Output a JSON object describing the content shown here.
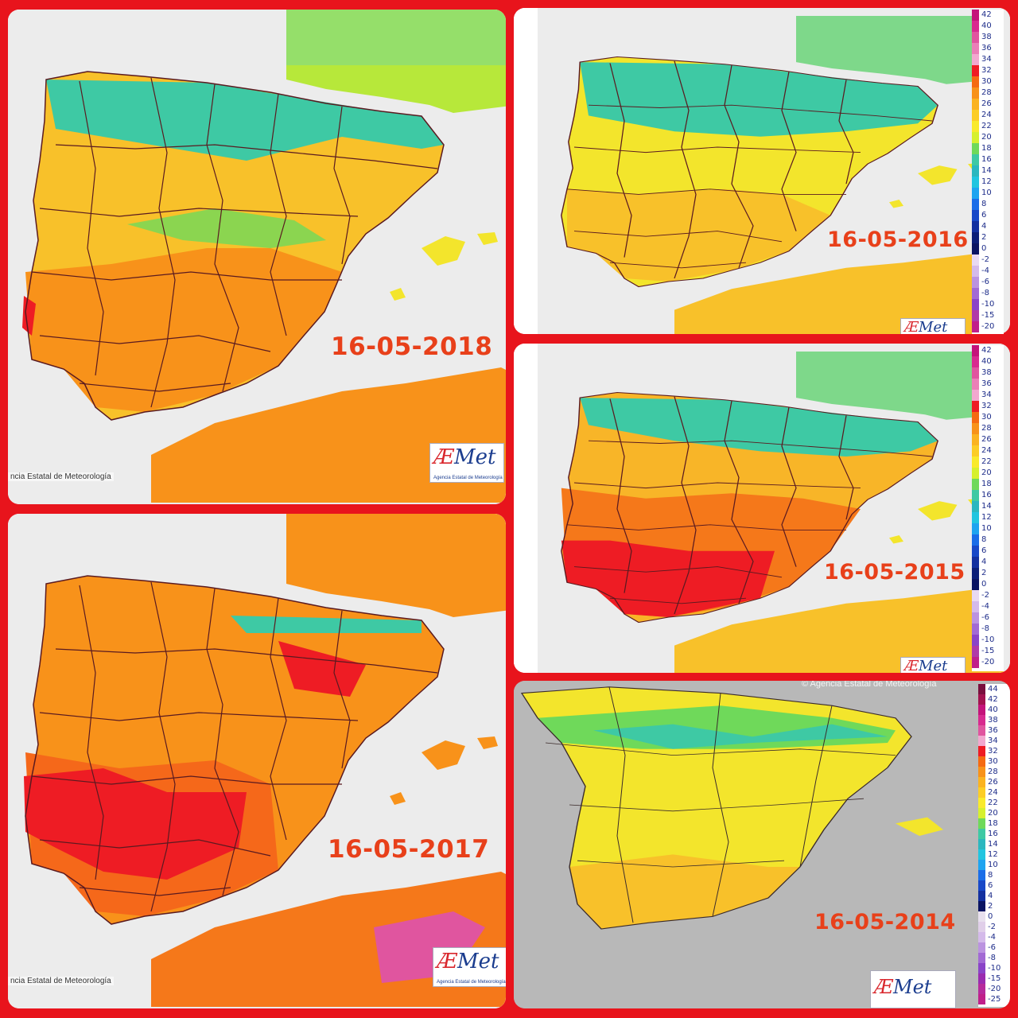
{
  "panels": [
    {
      "id": "p2018",
      "date": "16-05-2018",
      "credit": "ncia Estatal de Meteorología",
      "logo": "AEmet",
      "logo_sub": "Agencia Estatal de Meteorología"
    },
    {
      "id": "p2016",
      "date": "16-05-2016",
      "logo": "AEmet"
    },
    {
      "id": "p2015",
      "date": "16-05-2015",
      "logo": "AEmet"
    },
    {
      "id": "p2017",
      "date": "16-05-2017",
      "credit": "ncia Estatal de Meteorología",
      "logo": "AEmet",
      "logo_sub": "Agencia Estatal de Meteorología"
    },
    {
      "id": "p2014",
      "date": "16-05-2014",
      "top_credit": "© Agencia Estatal de Meteorología",
      "logo": "AEmet"
    }
  ],
  "legend_a": {
    "labels": [
      "42",
      "40",
      "38",
      "36",
      "34",
      "32",
      "30",
      "28",
      "26",
      "24",
      "22",
      "20",
      "18",
      "16",
      "14",
      "12",
      "10",
      "8",
      "6",
      "4",
      "2",
      "0",
      "-2",
      "-4",
      "-6",
      "-8",
      "-10",
      "-15",
      "-20"
    ],
    "colors": [
      "#c4137a",
      "#d82a8f",
      "#e0559f",
      "#ea7fb7",
      "#f2a8cf",
      "#ee1c24",
      "#f56a12",
      "#f8921a",
      "#fbb321",
      "#fccd26",
      "#f9ea2c",
      "#d6f02e",
      "#6fd95a",
      "#3ec9a4",
      "#2bb7bf",
      "#21c5e0",
      "#1ea4f0",
      "#1a6de8",
      "#1848c8",
      "#1330a0",
      "#0b1e78",
      "#0a1462",
      "#e8d9f2",
      "#d4baea",
      "#bb93e0",
      "#a26ad4",
      "#8a44c8",
      "#b03aa8",
      "#c0208a"
    ]
  },
  "legend_b": {
    "labels": [
      "44",
      "42",
      "40",
      "38",
      "36",
      "34",
      "32",
      "30",
      "28",
      "26",
      "24",
      "22",
      "20",
      "18",
      "16",
      "14",
      "12",
      "10",
      "8",
      "6",
      "4",
      "2",
      "0",
      "-2",
      "-4",
      "-6",
      "-8",
      "-10",
      "-15",
      "-20",
      "-25"
    ],
    "colors": [
      "#7a0f3e",
      "#a3124f",
      "#c4137a",
      "#d82a8f",
      "#e0559f",
      "#f2a8cf",
      "#ee1c24",
      "#f56a12",
      "#f8921a",
      "#fbb321",
      "#fccd26",
      "#f9ea2c",
      "#d6f02e",
      "#6fd95a",
      "#3ec9a4",
      "#2bb7bf",
      "#21c5e0",
      "#1ea4f0",
      "#1a6de8",
      "#1848c8",
      "#1330a0",
      "#0a1462",
      "#e8e0ee",
      "#e0cfe9",
      "#d4baea",
      "#bb93e0",
      "#a26ad4",
      "#8a44c8",
      "#9a2bb0",
      "#b62a9c",
      "#c0208a"
    ]
  },
  "palette": {
    "hot": "#f5781a",
    "warm": "#fbb321",
    "mild": "#f3e52c",
    "cool": "#3ec9a4",
    "very_hot": "#ee1c24",
    "border_frame": "#e8141c",
    "sea": "#ececec",
    "sea_2014": "#b8b8b8"
  }
}
